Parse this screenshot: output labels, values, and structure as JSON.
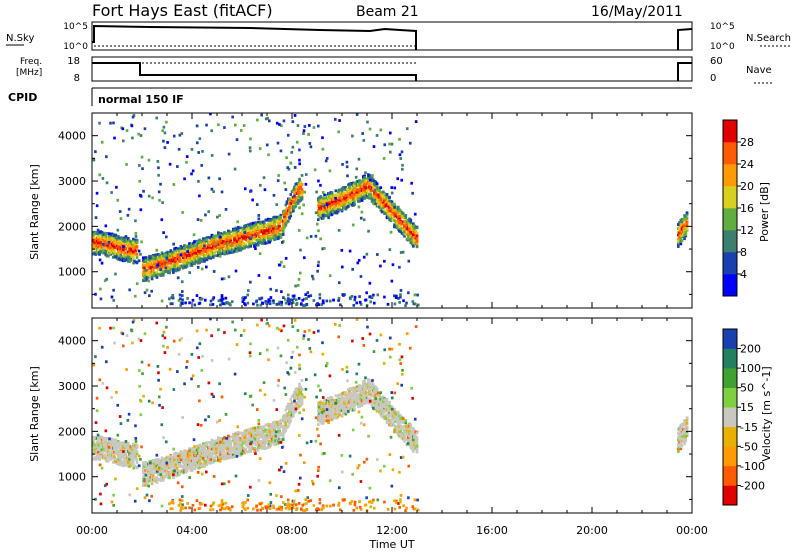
{
  "header": {
    "title": "Fort Hays East (fitACF)",
    "beam": "Beam 21",
    "date": "16/May/2011"
  },
  "status_panels": {
    "nsky_label": "N.Sky",
    "nsky_ticks": [
      "10^5",
      "10^0"
    ],
    "nsearch_label": "N.Search",
    "nsearch_ticks": [
      "10^5",
      "10^0"
    ],
    "freq_label": "Freq.",
    "freq_unit": "[MHz]",
    "freq_ticks": [
      "18",
      "8"
    ],
    "nave_label": "Nave",
    "nave_ticks": [
      "60",
      "0"
    ],
    "cpid_label": "CPID",
    "cpid_value": "normal 150 IF"
  },
  "colors": {
    "power_scale": [
      "#0000ff",
      "#1a3fb0",
      "#3a7f70",
      "#5fae3f",
      "#d8d020",
      "#ff9a00",
      "#ff5a00",
      "#e00000"
    ],
    "velocity_scale": [
      "#e00000",
      "#ff5a00",
      "#ff9a00",
      "#e8b000",
      "#c8c8c0",
      "#7fd040",
      "#40a030",
      "#208060",
      "#1a3fb0"
    ]
  },
  "chart_data": [
    {
      "type": "heatmap",
      "panel": "power",
      "ylabel": "Slant Range [km]",
      "ylim": [
        200,
        4500
      ],
      "yticks": [
        "1000",
        "2000",
        "3000",
        "4000"
      ],
      "xlim": [
        0,
        24
      ],
      "colorbar_label": "Power [dB]",
      "colorbar_ticks": [
        "4",
        "8",
        "12",
        "16",
        "20",
        "24",
        "28"
      ],
      "echo_bands": [
        {
          "t": [
            0.0,
            0.6,
            1.2,
            1.8
          ],
          "range": [
            1650,
            1600,
            1500,
            1450
          ]
        },
        {
          "t": [
            2.0,
            3.0,
            4.0,
            5.0,
            6.0,
            7.0,
            7.5
          ],
          "range": [
            1050,
            1200,
            1400,
            1600,
            1750,
            1900,
            2000
          ]
        },
        {
          "t": [
            7.6,
            8.0,
            8.4
          ],
          "range": [
            2100,
            2600,
            2900
          ]
        },
        {
          "t": [
            9.0,
            10.0,
            11.0,
            12.0,
            13.0
          ],
          "range": [
            2400,
            2600,
            2900,
            2300,
            1700
          ]
        },
        {
          "t": [
            23.4,
            23.8
          ],
          "range": [
            1800,
            2100
          ]
        }
      ]
    },
    {
      "type": "heatmap",
      "panel": "velocity",
      "ylabel": "Slant Range [km]",
      "ylim": [
        200,
        4500
      ],
      "yticks": [
        "1000",
        "2000",
        "3000",
        "4000"
      ],
      "xlim": [
        0,
        24
      ],
      "xticks": [
        "00:00",
        "04:00",
        "08:00",
        "12:00",
        "16:00",
        "20:00",
        "00:00"
      ],
      "xlabel": "Time UT",
      "colorbar_label": "Velocity [m s^-1]",
      "colorbar_ticks": [
        "200",
        "100",
        "50",
        "15",
        "-15",
        "-50",
        "-100",
        "-200"
      ]
    }
  ]
}
